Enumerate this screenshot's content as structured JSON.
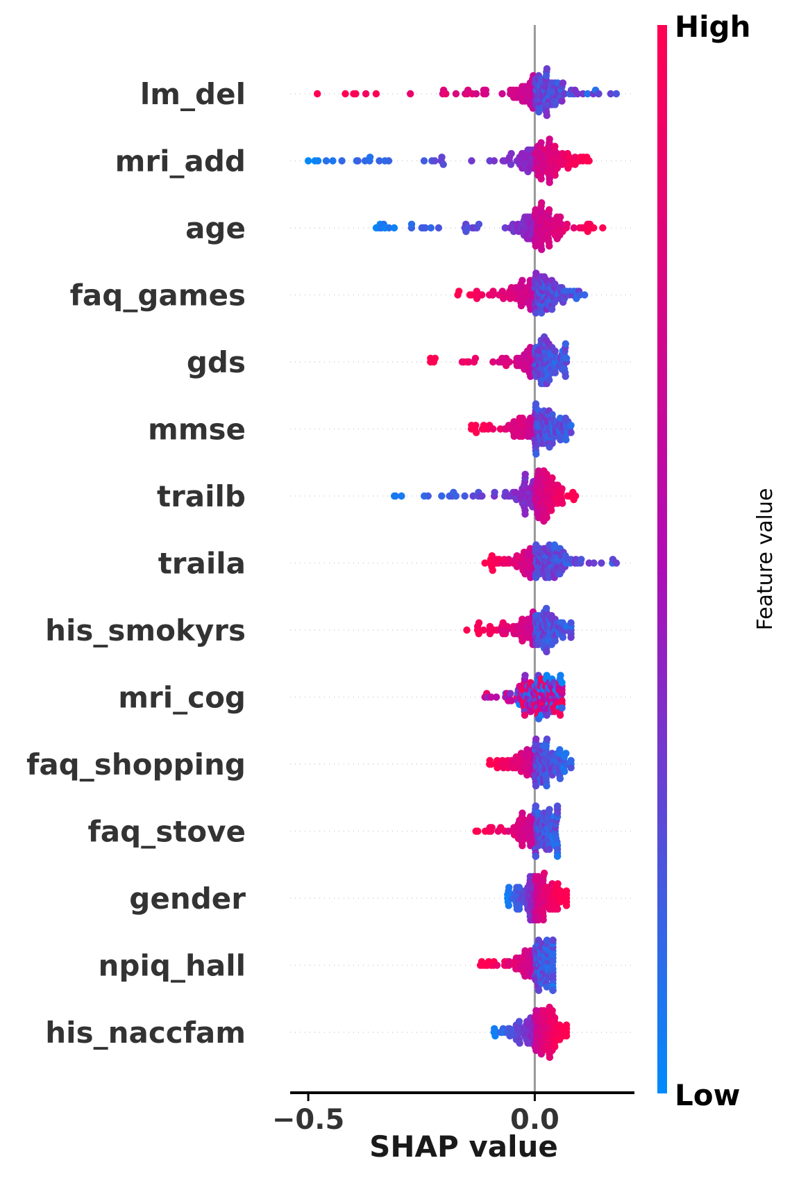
{
  "chart_data": {
    "type": "scatter",
    "subtype": "shap-beeswarm",
    "xlabel": "SHAP value",
    "xlim": [
      -0.54,
      0.22
    ],
    "xticks": [
      {
        "value": -0.5,
        "label": "−0.5"
      },
      {
        "value": 0.0,
        "label": "0.0"
      }
    ],
    "colorbar": {
      "title": "Feature value",
      "high_label": "High",
      "low_label": "Low",
      "high_color": "#ff0052",
      "low_color": "#008bfb"
    },
    "features": [
      {
        "name": "lm_del",
        "min": -0.48,
        "max": 0.18,
        "low_side": "positive"
      },
      {
        "name": "mri_add",
        "min": -0.5,
        "max": 0.12,
        "low_side": "negative"
      },
      {
        "name": "age",
        "min": -0.35,
        "max": 0.15,
        "low_side": "negative"
      },
      {
        "name": "faq_games",
        "min": -0.17,
        "max": 0.11,
        "low_side": "positive"
      },
      {
        "name": "gds",
        "min": -0.23,
        "max": 0.07,
        "low_side": "positive"
      },
      {
        "name": "mmse",
        "min": -0.14,
        "max": 0.08,
        "low_side": "positive"
      },
      {
        "name": "trailb",
        "min": -0.31,
        "max": 0.09,
        "low_side": "negative"
      },
      {
        "name": "traila",
        "min": -0.11,
        "max": 0.18,
        "low_side": "positive"
      },
      {
        "name": "his_smokyrs",
        "min": -0.15,
        "max": 0.08,
        "low_side": "positive"
      },
      {
        "name": "mri_cog",
        "min": -0.11,
        "max": 0.06,
        "low_side": "mixed"
      },
      {
        "name": "faq_shopping",
        "min": -0.1,
        "max": 0.08,
        "low_side": "positive"
      },
      {
        "name": "faq_stove",
        "min": -0.13,
        "max": 0.05,
        "low_side": "positive"
      },
      {
        "name": "gender",
        "min": -0.06,
        "max": 0.07,
        "low_side": "negative"
      },
      {
        "name": "npiq_hall",
        "min": -0.12,
        "max": 0.04,
        "low_side": "positive"
      },
      {
        "name": "his_naccfam",
        "min": -0.09,
        "max": 0.07,
        "low_side": "negative"
      }
    ]
  }
}
